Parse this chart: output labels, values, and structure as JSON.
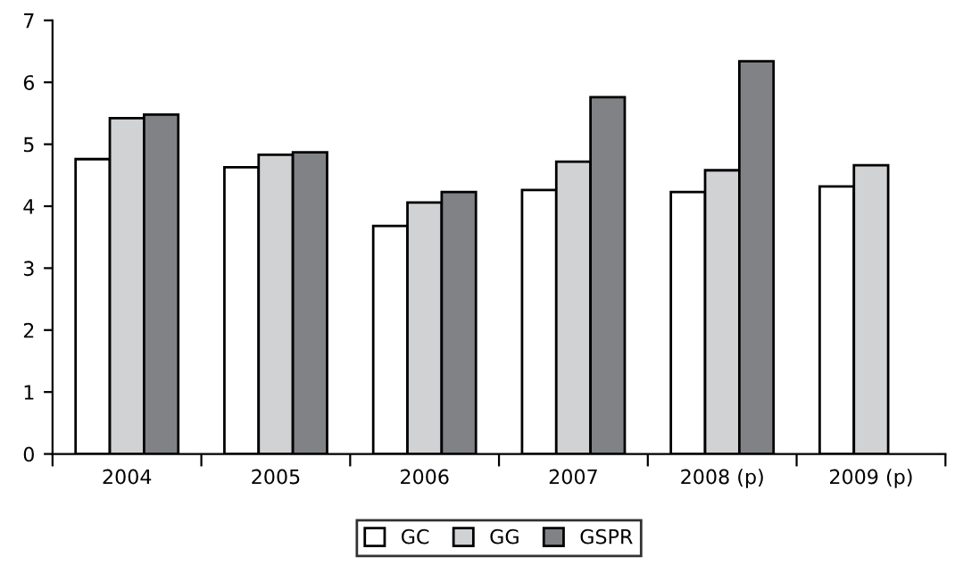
{
  "chart_data": {
    "type": "bar",
    "categories": [
      "2004",
      "2005",
      "2006",
      "2007",
      "2008 (p)",
      "2009 (p)"
    ],
    "series": [
      {
        "name": "GC",
        "color": "#ffffff",
        "values": [
          4.76,
          4.63,
          3.68,
          4.26,
          4.23,
          4.32
        ]
      },
      {
        "name": "GG",
        "color": "#d1d2d4",
        "values": [
          5.42,
          4.83,
          4.06,
          4.72,
          4.58,
          4.66
        ]
      },
      {
        "name": "GSPR",
        "color": "#808285",
        "values": [
          5.48,
          4.87,
          4.23,
          5.76,
          6.34,
          null
        ]
      }
    ],
    "ylim": [
      0,
      7
    ],
    "yticks": [
      0,
      1,
      2,
      3,
      4,
      5,
      6,
      7
    ],
    "grid": false,
    "legend": "bottom"
  }
}
